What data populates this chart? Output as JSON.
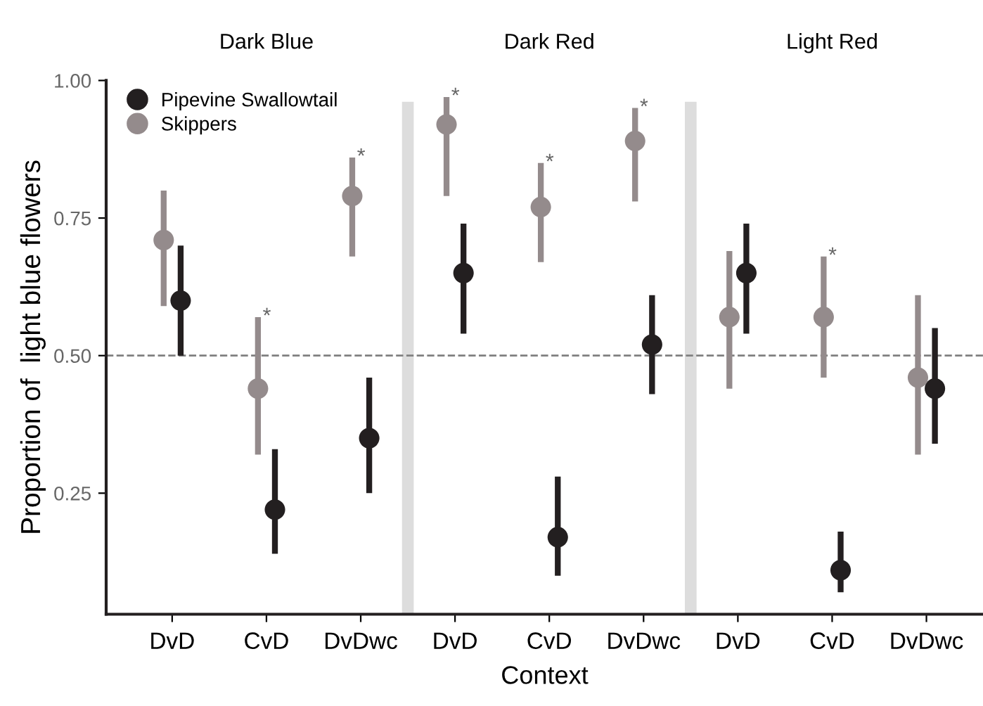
{
  "chart_data": {
    "type": "scatter",
    "xlabel": "Context",
    "ylabel": "Proportion of  light blue flowers",
    "categories": [
      "DvD",
      "CvD",
      "DvDwc",
      "DvD",
      "CvD",
      "DvDwc",
      "DvD",
      "CvD",
      "DvDwc"
    ],
    "annotations": [
      "Dark Blue",
      "Dark Red",
      "Light Red"
    ],
    "series": [
      {
        "name": "Pipevine Swallowtail",
        "color": "#231f20",
        "values": [
          0.6,
          0.22,
          0.35,
          0.65,
          0.17,
          0.52,
          0.65,
          0.11,
          0.44
        ],
        "errors": [
          [
            0.5,
            0.7
          ],
          [
            0.14,
            0.33
          ],
          [
            0.25,
            0.46
          ],
          [
            0.54,
            0.74
          ],
          [
            0.1,
            0.28
          ],
          [
            0.43,
            0.61
          ],
          [
            0.54,
            0.74
          ],
          [
            0.07,
            0.18
          ],
          [
            0.34,
            0.55
          ]
        ]
      },
      {
        "name": "Skippers",
        "color": "#948b8c",
        "values": [
          0.71,
          0.44,
          0.79,
          0.92,
          0.77,
          0.89,
          0.57,
          0.57,
          0.46
        ],
        "errors": [
          [
            0.59,
            0.8
          ],
          [
            0.32,
            0.57
          ],
          [
            0.68,
            0.86
          ],
          [
            0.79,
            0.97
          ],
          [
            0.67,
            0.85
          ],
          [
            0.78,
            0.95
          ],
          [
            0.44,
            0.69
          ],
          [
            0.46,
            0.68
          ],
          [
            0.32,
            0.61
          ]
        ],
        "value_labels": [
          null,
          "*",
          "*",
          "*",
          "*",
          "*",
          null,
          "*",
          null
        ]
      }
    ],
    "ylim": [
      0.03,
      1.0
    ],
    "yticks": [
      {
        "value": 0.25,
        "label": "0.25"
      },
      {
        "value": 0.5,
        "label": "0.50"
      },
      {
        "value": 0.75,
        "label": "0.75"
      },
      {
        "value": 1.0,
        "label": "1.00"
      }
    ],
    "ref_lines": [
      {
        "axis": "y",
        "value": 0.5,
        "color": "#808080",
        "line_style": "dashed"
      }
    ],
    "marker": "circle",
    "legend": "top left",
    "grid": false
  }
}
